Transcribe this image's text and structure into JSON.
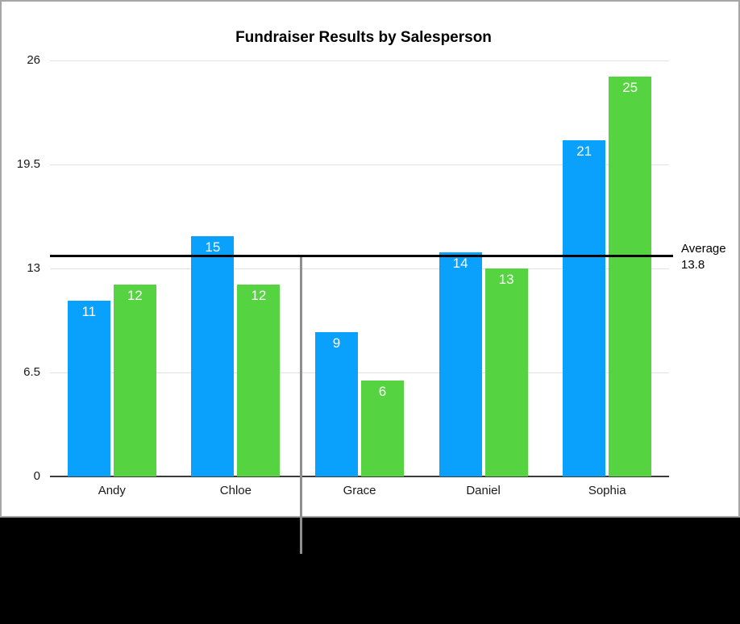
{
  "chart_data": {
    "type": "bar",
    "title": "Fundraiser Results by Salesperson",
    "categories": [
      "Andy",
      "Chloe",
      "Grace",
      "Daniel",
      "Sophia"
    ],
    "series": [
      {
        "name": "blue-series",
        "color": "#0AA1FC",
        "values": [
          11,
          15,
          9,
          14,
          21
        ]
      },
      {
        "name": "green-series",
        "color": "#56D340",
        "values": [
          12,
          12,
          6,
          13,
          25
        ]
      }
    ],
    "ylim": [
      0,
      26
    ],
    "y_ticks": [
      "0",
      "6.5",
      "13",
      "19.5",
      "26"
    ],
    "grid": true,
    "legend": "none",
    "bar_value_labels": [
      [
        11,
        15,
        9,
        14,
        21
      ],
      [
        12,
        12,
        6,
        13,
        25
      ]
    ],
    "bar_value_label_color": "#FFFFFF",
    "average_line": {
      "value": 13.8,
      "label_line1": "Average",
      "label_line2": "13.8",
      "color": "#000000"
    }
  },
  "annotations": {
    "callout_line": {
      "color": "#8F8F8F"
    }
  },
  "colors": {
    "panel_background": "#FFFFFF",
    "page_background": "#000000",
    "gridline": "#E2E2E2",
    "axis_line": "#3B3B3B",
    "panel_border": "#A6A6A6",
    "text": "#1A1A1A"
  }
}
